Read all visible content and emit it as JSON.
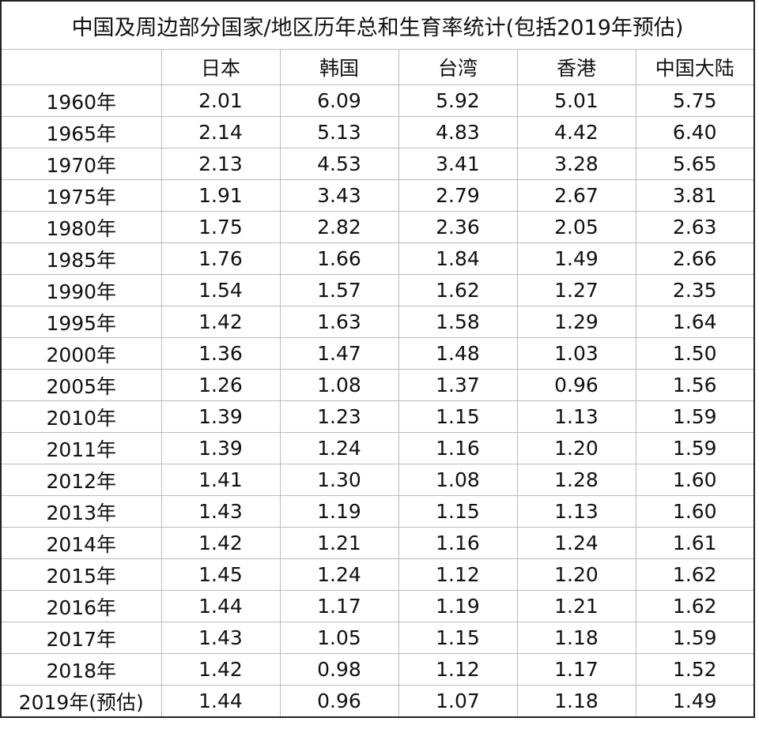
{
  "table": {
    "title": "中国及周边部分国家/地区历年总和生育率统计(包括2019年预估)",
    "columns": [
      "日本",
      "韩国",
      "台湾",
      "香港",
      "中国大陆"
    ],
    "rows": [
      [
        "1960年",
        "2.01",
        "6.09",
        "5.92",
        "5.01",
        "5.75"
      ],
      [
        "1965年",
        "2.14",
        "5.13",
        "4.83",
        "4.42",
        "6.40"
      ],
      [
        "1970年",
        "2.13",
        "4.53",
        "3.41",
        "3.28",
        "5.65"
      ],
      [
        "1975年",
        "1.91",
        "3.43",
        "2.79",
        "2.67",
        "3.81"
      ],
      [
        "1980年",
        "1.75",
        "2.82",
        "2.36",
        "2.05",
        "2.63"
      ],
      [
        "1985年",
        "1.76",
        "1.66",
        "1.84",
        "1.49",
        "2.66"
      ],
      [
        "1990年",
        "1.54",
        "1.57",
        "1.62",
        "1.27",
        "2.35"
      ],
      [
        "1995年",
        "1.42",
        "1.63",
        "1.58",
        "1.29",
        "1.64"
      ],
      [
        "2000年",
        "1.36",
        "1.47",
        "1.48",
        "1.03",
        "1.50"
      ],
      [
        "2005年",
        "1.26",
        "1.08",
        "1.37",
        "0.96",
        "1.56"
      ],
      [
        "2010年",
        "1.39",
        "1.23",
        "1.15",
        "1.13",
        "1.59"
      ],
      [
        "2011年",
        "1.39",
        "1.24",
        "1.16",
        "1.20",
        "1.59"
      ],
      [
        "2012年",
        "1.41",
        "1.30",
        "1.08",
        "1.28",
        "1.60"
      ],
      [
        "2013年",
        "1.43",
        "1.19",
        "1.15",
        "1.13",
        "1.60"
      ],
      [
        "2014年",
        "1.42",
        "1.21",
        "1.16",
        "1.24",
        "1.61"
      ],
      [
        "2015年",
        "1.45",
        "1.24",
        "1.12",
        "1.20",
        "1.62"
      ],
      [
        "2016年",
        "1.44",
        "1.17",
        "1.19",
        "1.21",
        "1.62"
      ],
      [
        "2017年",
        "1.43",
        "1.05",
        "1.15",
        "1.18",
        "1.59"
      ],
      [
        "2018年",
        "1.42",
        "0.98",
        "1.12",
        "1.17",
        "1.52"
      ],
      [
        "2019年(预估)",
        "1.44",
        "0.96",
        "1.07",
        "1.18",
        "1.49"
      ]
    ]
  }
}
